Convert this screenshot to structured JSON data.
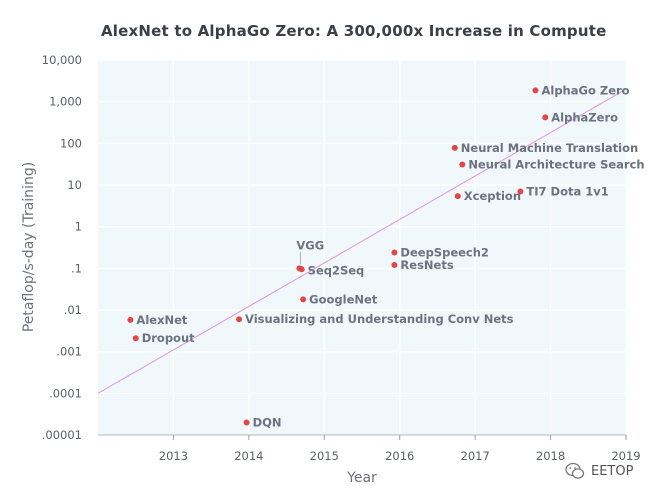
{
  "chart_data": {
    "type": "scatter",
    "title": "AlexNet to AlphaGo Zero: A 300,000x Increase in Compute",
    "xlabel": "Year",
    "ylabel": "Petaflop/s-day (Training)",
    "y_scale": "log",
    "xlim": [
      2012.0,
      2019.0
    ],
    "ylim": [
      1e-05,
      10000
    ],
    "x_ticks": [
      2013,
      2014,
      2015,
      2016,
      2017,
      2018,
      2019
    ],
    "x_tick_labels": [
      "2013",
      "2014",
      "2015",
      "2016",
      "2017",
      "2018",
      "2019"
    ],
    "y_ticks": [
      1e-05,
      0.0001,
      0.001,
      0.01,
      0.1,
      1,
      10,
      100,
      1000,
      10000
    ],
    "y_tick_labels": [
      ".00001",
      ".0001",
      ".001",
      ".01",
      ".1",
      "1",
      "10",
      "100",
      "1,000",
      "10,000"
    ],
    "points": [
      {
        "label": "AlexNet",
        "x": 2012.43,
        "y": 0.0058
      },
      {
        "label": "Dropout",
        "x": 2012.5,
        "y": 0.0021
      },
      {
        "label": "Visualizing and Understanding Conv Nets",
        "x": 2013.87,
        "y": 0.006
      },
      {
        "label": "DQN",
        "x": 2013.97,
        "y": 2e-05
      },
      {
        "label": "VGG",
        "x": 2014.67,
        "y": 0.1
      },
      {
        "label": "Seq2Seq",
        "x": 2014.7,
        "y": 0.095
      },
      {
        "label": "GoogleNet",
        "x": 2014.72,
        "y": 0.018
      },
      {
        "label": "DeepSpeech2",
        "x": 2015.93,
        "y": 0.24
      },
      {
        "label": "ResNets",
        "x": 2015.93,
        "y": 0.12
      },
      {
        "label": "Neural Machine Translation",
        "x": 2016.73,
        "y": 78
      },
      {
        "label": "Neural Architecture Search",
        "x": 2016.83,
        "y": 31
      },
      {
        "label": "Xception",
        "x": 2016.77,
        "y": 5.4
      },
      {
        "label": "TI7 Dota 1v1",
        "x": 2017.6,
        "y": 7
      },
      {
        "label": "AlphaZero",
        "x": 2017.93,
        "y": 420
      },
      {
        "label": "AlphaGo Zero",
        "x": 2017.8,
        "y": 1860
      }
    ],
    "trend_line": {
      "x": [
        2012.0,
        2019.0
      ],
      "y": [
        0.0001,
        2000
      ]
    },
    "colors": {
      "plot_background": "#f1f8fb",
      "point": "#e24647",
      "trend_line": "#e39be0"
    }
  },
  "watermark": {
    "text": "EETOP",
    "icon": "wechat-icon"
  }
}
